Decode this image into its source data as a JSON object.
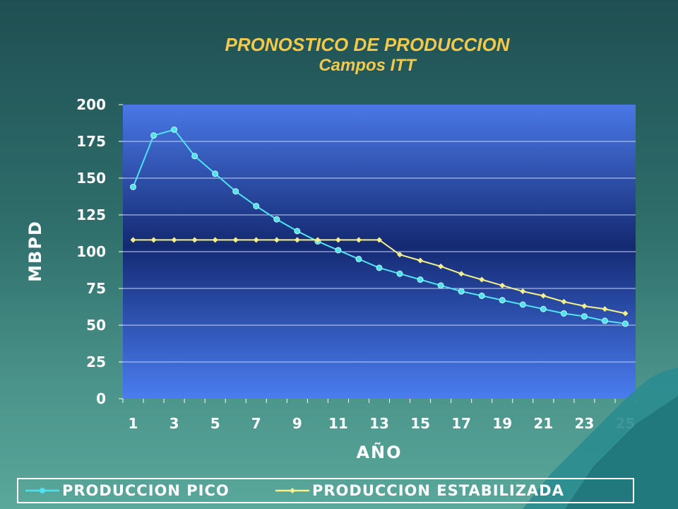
{
  "chart_data": {
    "type": "line",
    "title": "PRONOSTICO DE PRODUCCION",
    "subtitle": "Campos ITT",
    "xlabel": "AÑO",
    "ylabel": "MBPD",
    "ylim": [
      0,
      200
    ],
    "yticks": [
      0,
      25,
      50,
      75,
      100,
      125,
      150,
      175,
      200
    ],
    "xticks": [
      1,
      3,
      5,
      7,
      9,
      11,
      13,
      15,
      17,
      19,
      21,
      23,
      25
    ],
    "x": [
      1,
      2,
      3,
      4,
      5,
      6,
      7,
      8,
      9,
      10,
      11,
      12,
      13,
      14,
      15,
      16,
      17,
      18,
      19,
      20,
      21,
      22,
      23,
      24,
      25
    ],
    "grid": true,
    "legend_position": "bottom",
    "series": [
      {
        "name": "PRODUCCION PICO",
        "color": "#4fe3f0",
        "values": [
          144,
          179,
          183,
          165,
          153,
          141,
          131,
          122,
          114,
          107,
          101,
          95,
          89,
          85,
          81,
          77,
          73,
          70,
          67,
          64,
          61,
          58,
          56,
          53,
          51
        ]
      },
      {
        "name": "PRODUCCION ESTABILIZADA",
        "color": "#f5f08a",
        "values": [
          108,
          108,
          108,
          108,
          108,
          108,
          108,
          108,
          108,
          108,
          108,
          108,
          108,
          98,
          94,
          90,
          85,
          81,
          77,
          73,
          70,
          66,
          63,
          61,
          58
        ]
      }
    ]
  }
}
